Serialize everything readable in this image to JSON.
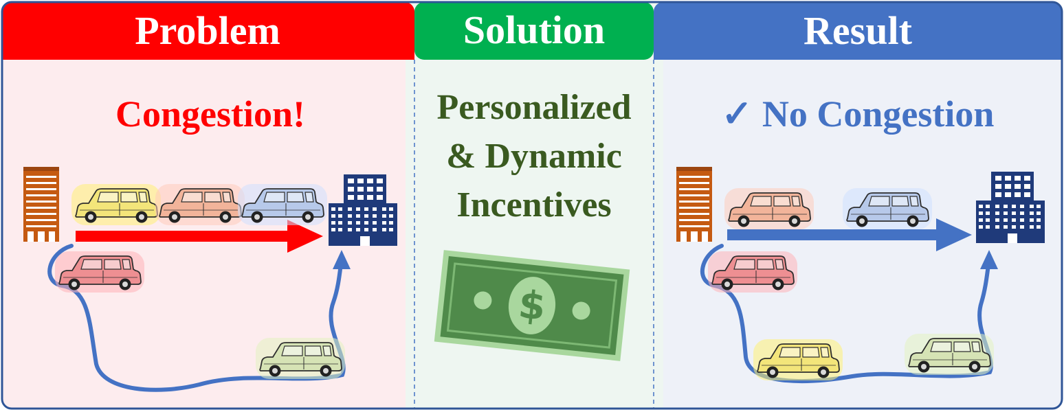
{
  "panels": {
    "problem": {
      "title": "Problem",
      "label": "Congestion!",
      "header_color": "#ff0000",
      "bg_color": "#fdecee"
    },
    "solution": {
      "title": "Solution",
      "lines": [
        "Personalized",
        "& Dynamic",
        "Incentives"
      ],
      "header_color": "#00b050",
      "bg_color": "#eef6f1"
    },
    "result": {
      "title": "Result",
      "check": "✓",
      "label": "No Congestion",
      "header_color": "#4472c4",
      "bg_color": "#eef1f8"
    }
  },
  "colors": {
    "border": "#2f5597",
    "arrow_red": "#ff0000",
    "route_blue": "#4472c4",
    "building_brown": "#c55a11",
    "building_navy": "#1f3a7a",
    "bill_green": "#4f8a4a"
  },
  "icons": [
    "apartment-building-icon",
    "office-building-icon",
    "car-icon",
    "dollar-bill-icon",
    "checkmark-icon"
  ]
}
